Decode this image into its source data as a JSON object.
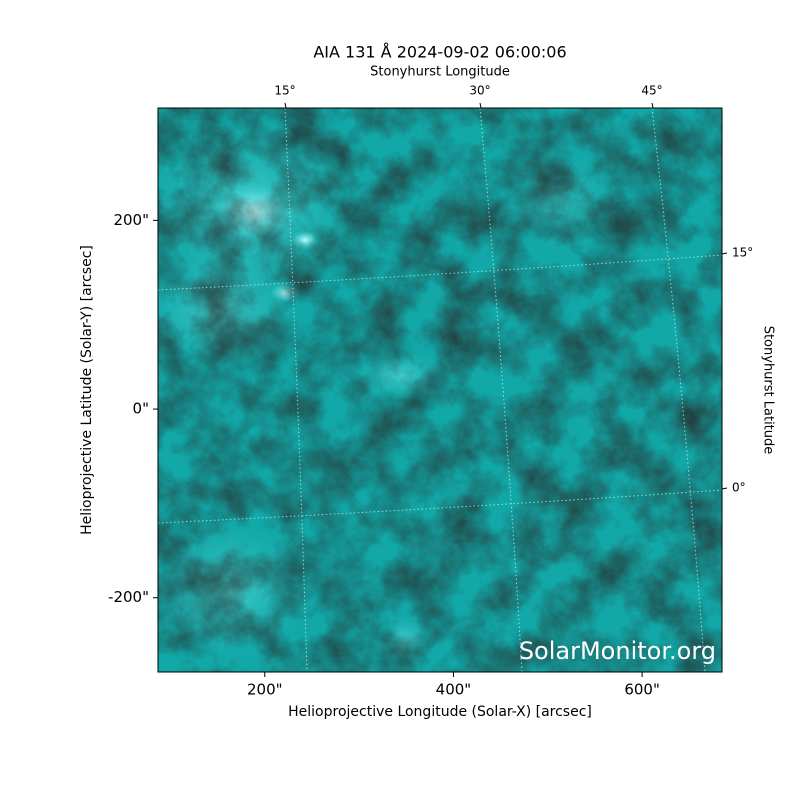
{
  "chart_data": {
    "type": "image",
    "title": "AIA 131 Å 2024-09-02 06:00:06",
    "x_label": "Helioprojective Longitude (Solar-X) [arcsec]",
    "y_label": "Helioprojective Latitude (Solar-Y) [arcsec]",
    "top_label": "Stonyhurst Longitude",
    "right_label": "Stonyhurst Latitude",
    "xlim": [
      86.8,
      684.7
    ],
    "ylim": [
      -278.7,
      319.1
    ],
    "xticks": [
      {
        "value": 200,
        "label": "200\""
      },
      {
        "value": 400,
        "label": "400\""
      },
      {
        "value": 600,
        "label": "600\""
      }
    ],
    "yticks": [
      {
        "value": -200,
        "label": "-200\""
      },
      {
        "value": 0,
        "label": "0\""
      },
      {
        "value": 200,
        "label": "200\""
      }
    ],
    "lon_ticks": [
      {
        "value": 15,
        "label": "15°"
      },
      {
        "value": 30,
        "label": "30°"
      },
      {
        "value": 45,
        "label": "45°"
      }
    ],
    "lat_ticks": [
      {
        "value": 15,
        "label": "15°"
      },
      {
        "value": 0,
        "label": "0°"
      }
    ],
    "grid": true,
    "color": "#12a8a8",
    "watermark": "SolarMonitor.org"
  }
}
